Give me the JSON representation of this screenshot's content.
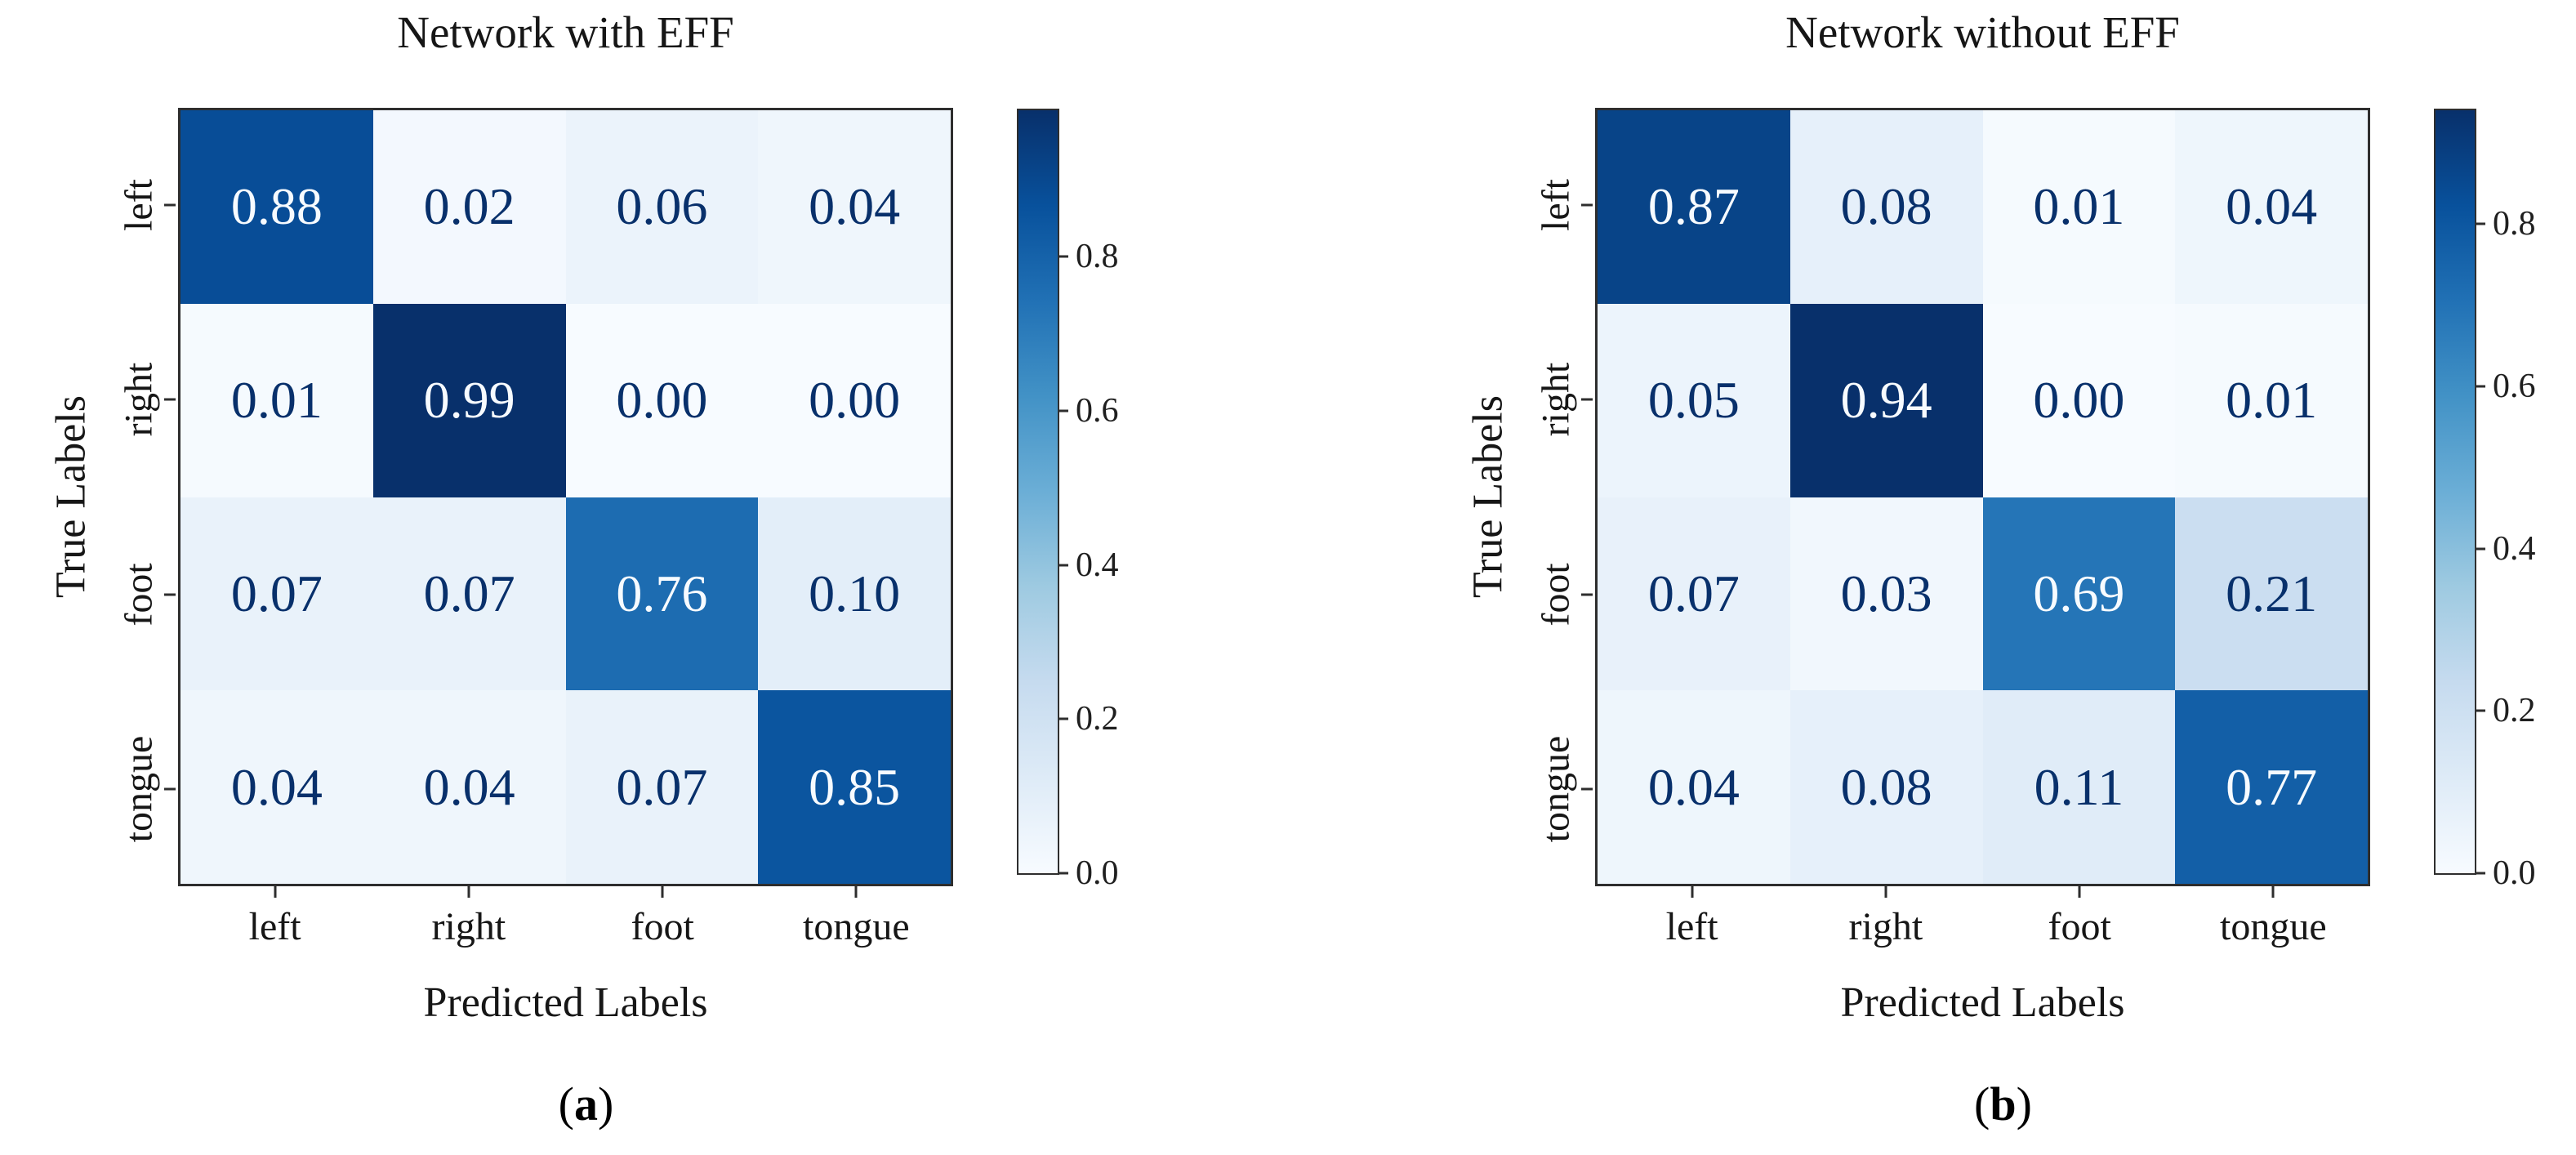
{
  "figure": {
    "background": "#ffffff"
  },
  "colors": {
    "cell_text_light": "#f7fbff",
    "cell_text_dark": "#08306b",
    "axis_line": "#2e2e2e",
    "title_text": "#161616",
    "colormap_name": "Blues",
    "colormap_anchors": [
      [
        0.0,
        247,
        251,
        255
      ],
      [
        0.125,
        222,
        235,
        247
      ],
      [
        0.25,
        198,
        219,
        239
      ],
      [
        0.375,
        158,
        202,
        225
      ],
      [
        0.5,
        107,
        174,
        214
      ],
      [
        0.625,
        66,
        146,
        198
      ],
      [
        0.75,
        33,
        113,
        181
      ],
      [
        0.875,
        8,
        81,
        156
      ],
      [
        1.0,
        8,
        48,
        107
      ]
    ]
  },
  "chart_data": [
    {
      "type": "heatmap",
      "title": "Network with EFF",
      "xlabel": "Predicted Labels",
      "ylabel": "True Labels",
      "categories": [
        "left",
        "right",
        "foot",
        "tongue"
      ],
      "matrix": [
        [
          0.88,
          0.02,
          0.06,
          0.04
        ],
        [
          0.01,
          0.99,
          0.0,
          0.0
        ],
        [
          0.07,
          0.07,
          0.76,
          0.1
        ],
        [
          0.04,
          0.04,
          0.07,
          0.85
        ]
      ],
      "vmin": 0.0,
      "vmax": 0.99,
      "colorbar_ticks": [
        0.8,
        0.6,
        0.4,
        0.2,
        0.0
      ],
      "caption_open": "(",
      "caption_letter": "a",
      "caption_close": ")"
    },
    {
      "type": "heatmap",
      "title": "Network without EFF",
      "xlabel": "Predicted Labels",
      "ylabel": "True Labels",
      "categories": [
        "left",
        "right",
        "foot",
        "tongue"
      ],
      "matrix": [
        [
          0.87,
          0.08,
          0.01,
          0.04
        ],
        [
          0.05,
          0.94,
          0.0,
          0.01
        ],
        [
          0.07,
          0.03,
          0.69,
          0.21
        ],
        [
          0.04,
          0.08,
          0.11,
          0.77
        ]
      ],
      "vmin": 0.0,
      "vmax": 0.94,
      "colorbar_ticks": [
        0.8,
        0.6,
        0.4,
        0.2,
        0.0
      ],
      "caption_open": "(",
      "caption_letter": "b",
      "caption_close": ")"
    }
  ]
}
